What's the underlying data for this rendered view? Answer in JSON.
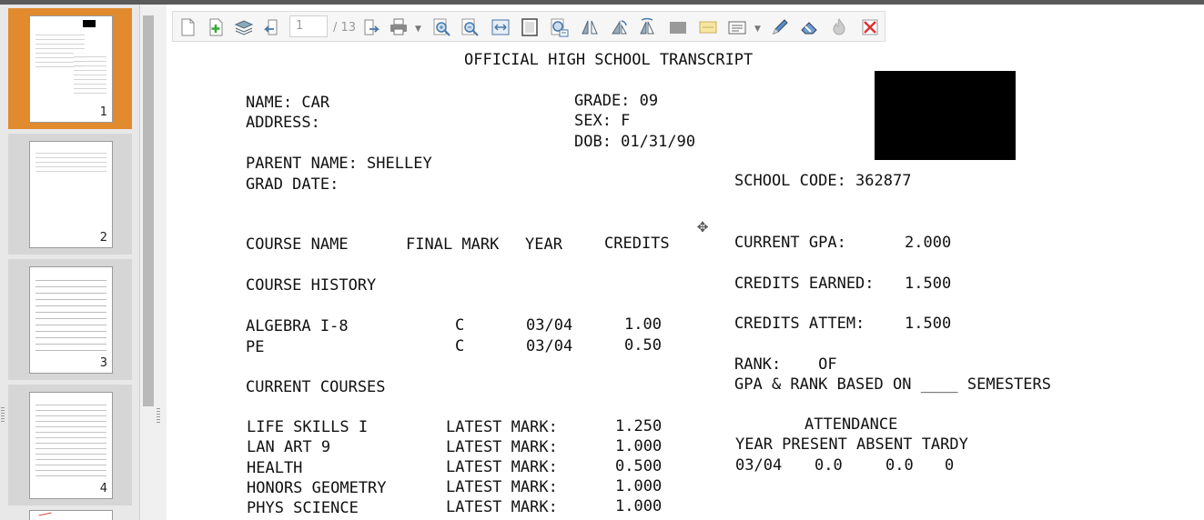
{
  "viewer": {
    "current_page": "1",
    "total_pages": "/ 13",
    "thumbnails": [
      {
        "label": "1",
        "active": true
      },
      {
        "label": "2",
        "active": false
      },
      {
        "label": "3",
        "active": false
      },
      {
        "label": "4",
        "active": false
      }
    ],
    "toolbar_icons": [
      "new-document-icon",
      "add-page-icon",
      "layers-icon",
      "previous-page-icon",
      "next-page-icon",
      "print-icon",
      "zoom-in-icon",
      "zoom-out-icon",
      "fit-width-icon",
      "fit-page-icon",
      "actual-size-icon",
      "rotate-left-icon",
      "rotate-right-icon",
      "flip-icon",
      "rectangle-icon",
      "highlight-icon",
      "text-box-icon",
      "pen-icon",
      "eraser-icon",
      "burn-icon",
      "delete-icon"
    ]
  },
  "transcript": {
    "title": "OFFICIAL HIGH SCHOOL TRANSCRIPT",
    "name": "NAME: CAR",
    "address": "ADDRESS:",
    "grade": "GRADE: 09",
    "sex": "SEX: F",
    "dob": "DOB: 01/31/90",
    "parent_name": "PARENT NAME: SHELLEY",
    "grad_date": "GRAD DATE:",
    "school_code": "SCHOOL CODE: 362877",
    "headers": {
      "course_name": "COURSE NAME",
      "final_mark": "FINAL MARK",
      "year": "YEAR",
      "credits": "CREDITS"
    },
    "course_history_label": "COURSE HISTORY",
    "course_history": [
      {
        "name": "ALGEBRA I-8",
        "mark": "C",
        "year": "03/04",
        "credits": "1.00"
      },
      {
        "name": "PE",
        "mark": "C",
        "year": "03/04",
        "credits": "0.50"
      }
    ],
    "current_courses_label": "CURRENT COURSES",
    "current_courses": [
      {
        "name": "LIFE SKILLS I",
        "label": "LATEST MARK:",
        "value": "1.250"
      },
      {
        "name": "LAN ART 9",
        "label": "LATEST MARK:",
        "value": "1.000"
      },
      {
        "name": "HEALTH",
        "label": "LATEST MARK:",
        "value": "0.500"
      },
      {
        "name": "HONORS GEOMETRY",
        "label": "LATEST MARK:",
        "value": "1.000"
      },
      {
        "name": "PHYS SCIENCE",
        "label": "LATEST MARK:",
        "value": "1.000"
      }
    ],
    "stats": {
      "gpa_label": "CURRENT GPA:",
      "gpa": "2.000",
      "earned_label": "CREDITS EARNED:",
      "earned": "1.500",
      "attempted_label": "CREDITS ATTEM:",
      "attempted": "1.500",
      "rank": "RANK:    OF",
      "rank_basis": "GPA & RANK BASED ON ____ SEMESTERS"
    },
    "attendance": {
      "title": "ATTENDANCE",
      "headers": "YEAR PRESENT ABSENT TARDY",
      "year": "03/04",
      "present": "0.0",
      "absent": "0.0",
      "tardy": "0"
    }
  }
}
